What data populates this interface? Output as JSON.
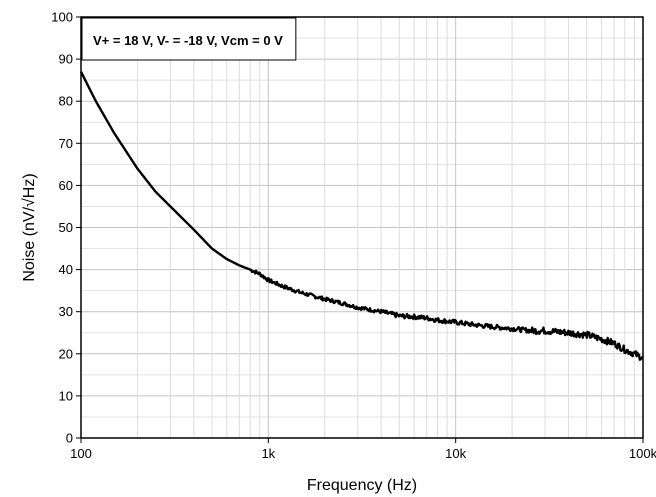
{
  "chart_data": {
    "type": "line",
    "title": "",
    "xlabel": "Frequency (Hz)",
    "ylabel": "Noise (nV/√Hz)",
    "xscale": "log",
    "xlim": [
      100,
      100000
    ],
    "ylim": [
      0,
      100
    ],
    "grid": true,
    "legend": "none",
    "annotation": "V+ = 18 V, V- = -18 V, Vcm = 0 V",
    "x_ticks": [
      {
        "value": 100,
        "label": "100"
      },
      {
        "value": 1000,
        "label": "1k"
      },
      {
        "value": 10000,
        "label": "10k"
      },
      {
        "value": 100000,
        "label": "100k"
      }
    ],
    "y_ticks": [
      0,
      10,
      20,
      30,
      40,
      50,
      60,
      70,
      80,
      90,
      100
    ],
    "series": [
      {
        "color": "#000000",
        "x": [
          100,
          120,
          150,
          200,
          250,
          300,
          400,
          500,
          600,
          700,
          800,
          900,
          1000,
          1200,
          1500,
          2000,
          2500,
          3000,
          4000,
          5000,
          6000,
          7000,
          8000,
          10000,
          12000,
          15000,
          20000,
          25000,
          30000,
          40000,
          50000,
          60000,
          70000,
          80000,
          90000,
          100000
        ],
        "y": [
          87,
          80,
          72.5,
          64,
          58.5,
          55,
          49.5,
          45,
          42.5,
          41,
          40,
          39,
          37.5,
          36,
          34.5,
          33,
          32,
          31,
          30,
          29,
          28.8,
          28.5,
          28,
          27.5,
          27,
          26.5,
          26,
          25.5,
          25.5,
          25,
          24.5,
          23.5,
          22.5,
          21,
          20,
          19
        ]
      }
    ]
  }
}
